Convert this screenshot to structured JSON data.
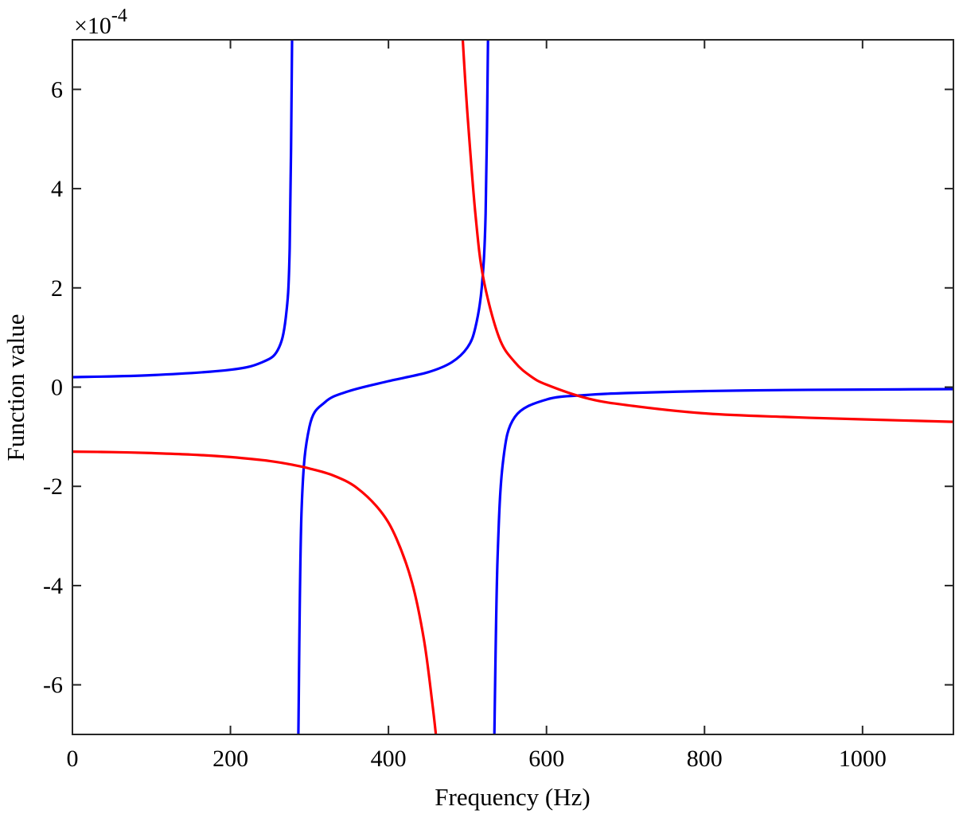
{
  "chart_data": {
    "type": "line",
    "title": "",
    "xlabel": "Frequency (Hz)",
    "ylabel": "Function value",
    "xlim": [
      0,
      1115
    ],
    "ylim": [
      -7,
      7
    ],
    "y_exponent_base": "10",
    "y_exponent_power": "-4",
    "x_ticks": [
      "0",
      "200",
      "400",
      "600",
      "800",
      "1000"
    ],
    "y_ticks": [
      "-6",
      "-4",
      "-2",
      "0",
      "2",
      "4",
      "6"
    ],
    "grid": false,
    "legend": "none",
    "series": [
      {
        "color": "#0000ff",
        "x": [
          0,
          100,
          200,
          240,
          260,
          270,
          275,
          278,
          286,
          290,
          300,
          320,
          350,
          400,
          450,
          480,
          500,
          510,
          518,
          523,
          526,
          534,
          538,
          545,
          560,
          600,
          650,
          700,
          800,
          900,
          1000,
          1115
        ],
        "y": [
          0.2,
          0.24,
          0.35,
          0.5,
          0.75,
          1.4,
          2.8,
          7.0,
          -7.0,
          -2.5,
          -0.8,
          -0.3,
          -0.08,
          0.12,
          0.3,
          0.5,
          0.8,
          1.2,
          2.0,
          3.5,
          7.0,
          -7.0,
          -3.5,
          -1.5,
          -0.6,
          -0.25,
          -0.16,
          -0.12,
          -0.08,
          -0.06,
          -0.05,
          -0.04
        ]
      },
      {
        "color": "#ff0000",
        "x": [
          0,
          50,
          100,
          150,
          200,
          250,
          280,
          300,
          330,
          360,
          390,
          410,
          430,
          445,
          455,
          460,
          494,
          500,
          510,
          520,
          540,
          560,
          580,
          600,
          650,
          700,
          800,
          900,
          1000,
          1115
        ],
        "y": [
          -1.3,
          -1.31,
          -1.33,
          -1.36,
          -1.41,
          -1.49,
          -1.57,
          -1.64,
          -1.78,
          -2.03,
          -2.5,
          -3.05,
          -3.95,
          -5.1,
          -6.3,
          -7.0,
          7.0,
          5.5,
          3.5,
          2.2,
          1.0,
          0.5,
          0.22,
          0.05,
          -0.22,
          -0.36,
          -0.53,
          -0.6,
          -0.65,
          -0.7
        ]
      }
    ]
  }
}
